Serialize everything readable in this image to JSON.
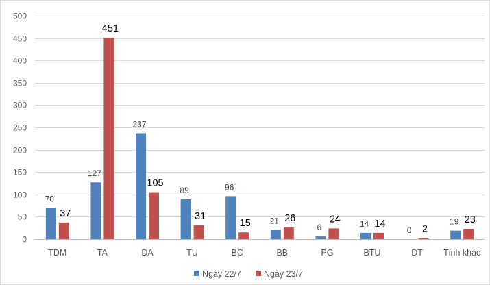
{
  "chart_data": {
    "type": "bar",
    "title": "",
    "xlabel": "",
    "ylabel": "",
    "ylim": [
      0,
      500
    ],
    "yticks": [
      0,
      50,
      100,
      150,
      200,
      250,
      300,
      350,
      400,
      450,
      500
    ],
    "grid": true,
    "legend_position": "bottom",
    "categories": [
      "TDM",
      "TA",
      "DA",
      "TU",
      "BC",
      "BB",
      "PG",
      "BTU",
      "DT",
      "Tỉnh khác"
    ],
    "series": [
      {
        "name": "Ngày 22/7",
        "color": "#4f81bd",
        "values": [
          70,
          127,
          237,
          89,
          96,
          21,
          6,
          14,
          0,
          19
        ]
      },
      {
        "name": "Ngày 23/7",
        "color": "#c0504d",
        "values": [
          37,
          451,
          105,
          31,
          15,
          26,
          24,
          14,
          2,
          23
        ]
      }
    ]
  }
}
